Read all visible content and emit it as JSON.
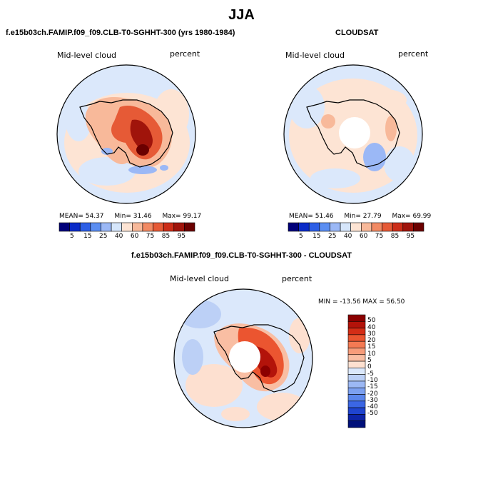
{
  "title": "JJA",
  "panels": {
    "model": {
      "header": "f.e15b03ch.FAMIP.f09_f09.CLB-T0-SGHHT-300 (yrs 1980-1984)",
      "left_label": "Mid-level cloud",
      "right_label": "percent",
      "stats": {
        "mean_label": "MEAN=",
        "mean": "54.37",
        "min_label": "Min=",
        "min": "31.46",
        "max_label": "Max=",
        "max": "99.17"
      }
    },
    "obs": {
      "header": "CLOUDSAT",
      "left_label": "Mid-level cloud",
      "right_label": "percent",
      "stats": {
        "mean_label": "MEAN=",
        "mean": "51.46",
        "min_label": "Min=",
        "min": "27.79",
        "max_label": "Max=",
        "max": "69.99"
      }
    },
    "diff": {
      "header": "f.e15b03ch.FAMIP.f09_f09.CLB-T0-SGHHT-300 - CLOUDSAT",
      "left_label": "Mid-level cloud",
      "right_label": "percent",
      "minmax": "MIN = -13.56 MAX =  56.50"
    }
  },
  "colorbar_abs": {
    "colors": [
      "#00007a",
      "#0b2bc8",
      "#2d5fe6",
      "#5b8ef2",
      "#9bb8f6",
      "#d6e6fb",
      "#fde4d4",
      "#f8b99a",
      "#f28a63",
      "#e65a36",
      "#cc2d18",
      "#a0140b",
      "#6b0000"
    ],
    "labels": [
      "5",
      "15",
      "25",
      "40",
      "60",
      "75",
      "85",
      "95"
    ]
  },
  "colorbar_diff": {
    "colors": [
      "#8b0000",
      "#b3130a",
      "#d42d16",
      "#eb5530",
      "#f47a53",
      "#f79c7a",
      "#f9bea3",
      "#fde0d0",
      "#dbe8fb",
      "#bcd0f6",
      "#9cb8f4",
      "#7ca0f0",
      "#5b86ec",
      "#3b66e4",
      "#1f44cf",
      "#0d24a8",
      "#00107a"
    ],
    "labels": [
      "50",
      "40",
      "30",
      "20",
      "15",
      "10",
      "5",
      "0",
      "-5",
      "-10",
      "-15",
      "-20",
      "-30",
      "-40",
      "-50"
    ]
  },
  "colors": {
    "coast": "#000000",
    "background": "#ffffff"
  }
}
